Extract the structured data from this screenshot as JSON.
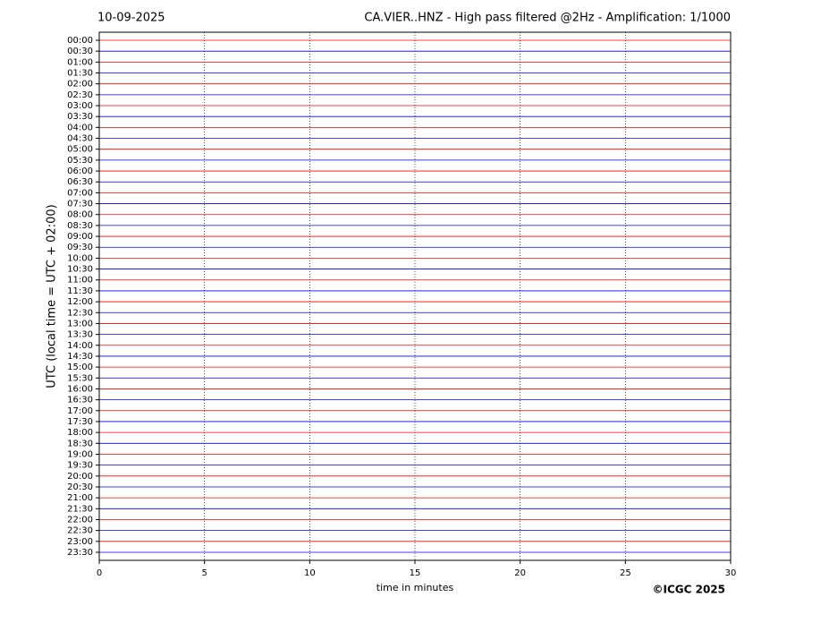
{
  "chart_data": {
    "type": "helicorder",
    "date": "10-09-2025",
    "title": "CA.VIER..HNZ - High pass filtered @2Hz - Amplification: 1/1000",
    "y_label": "UTC (local time = UTC + 02:00)",
    "x_label": "time in minutes",
    "credit": "©ICGC 2025",
    "categories": [
      "00:00",
      "00:30",
      "01:00",
      "01:30",
      "02:00",
      "02:30",
      "03:00",
      "03:30",
      "04:00",
      "04:30",
      "05:00",
      "05:30",
      "06:00",
      "06:30",
      "07:00",
      "07:30",
      "08:00",
      "08:30",
      "09:00",
      "09:30",
      "10:00",
      "10:30",
      "11:00",
      "11:30",
      "12:00",
      "12:30",
      "13:00",
      "13:30",
      "14:00",
      "14:30",
      "15:00",
      "15:30",
      "16:00",
      "16:30",
      "17:00",
      "17:30",
      "18:00",
      "18:30",
      "19:00",
      "19:30",
      "20:00",
      "20:30",
      "21:00",
      "21:30",
      "22:00",
      "22:30",
      "23:00",
      "23:30"
    ],
    "row_colors": [
      "#ff0000",
      "#0000ff"
    ],
    "xlim": [
      0,
      30
    ],
    "xticks": [
      0,
      5,
      10,
      15,
      20,
      25,
      30
    ],
    "grid": true
  }
}
